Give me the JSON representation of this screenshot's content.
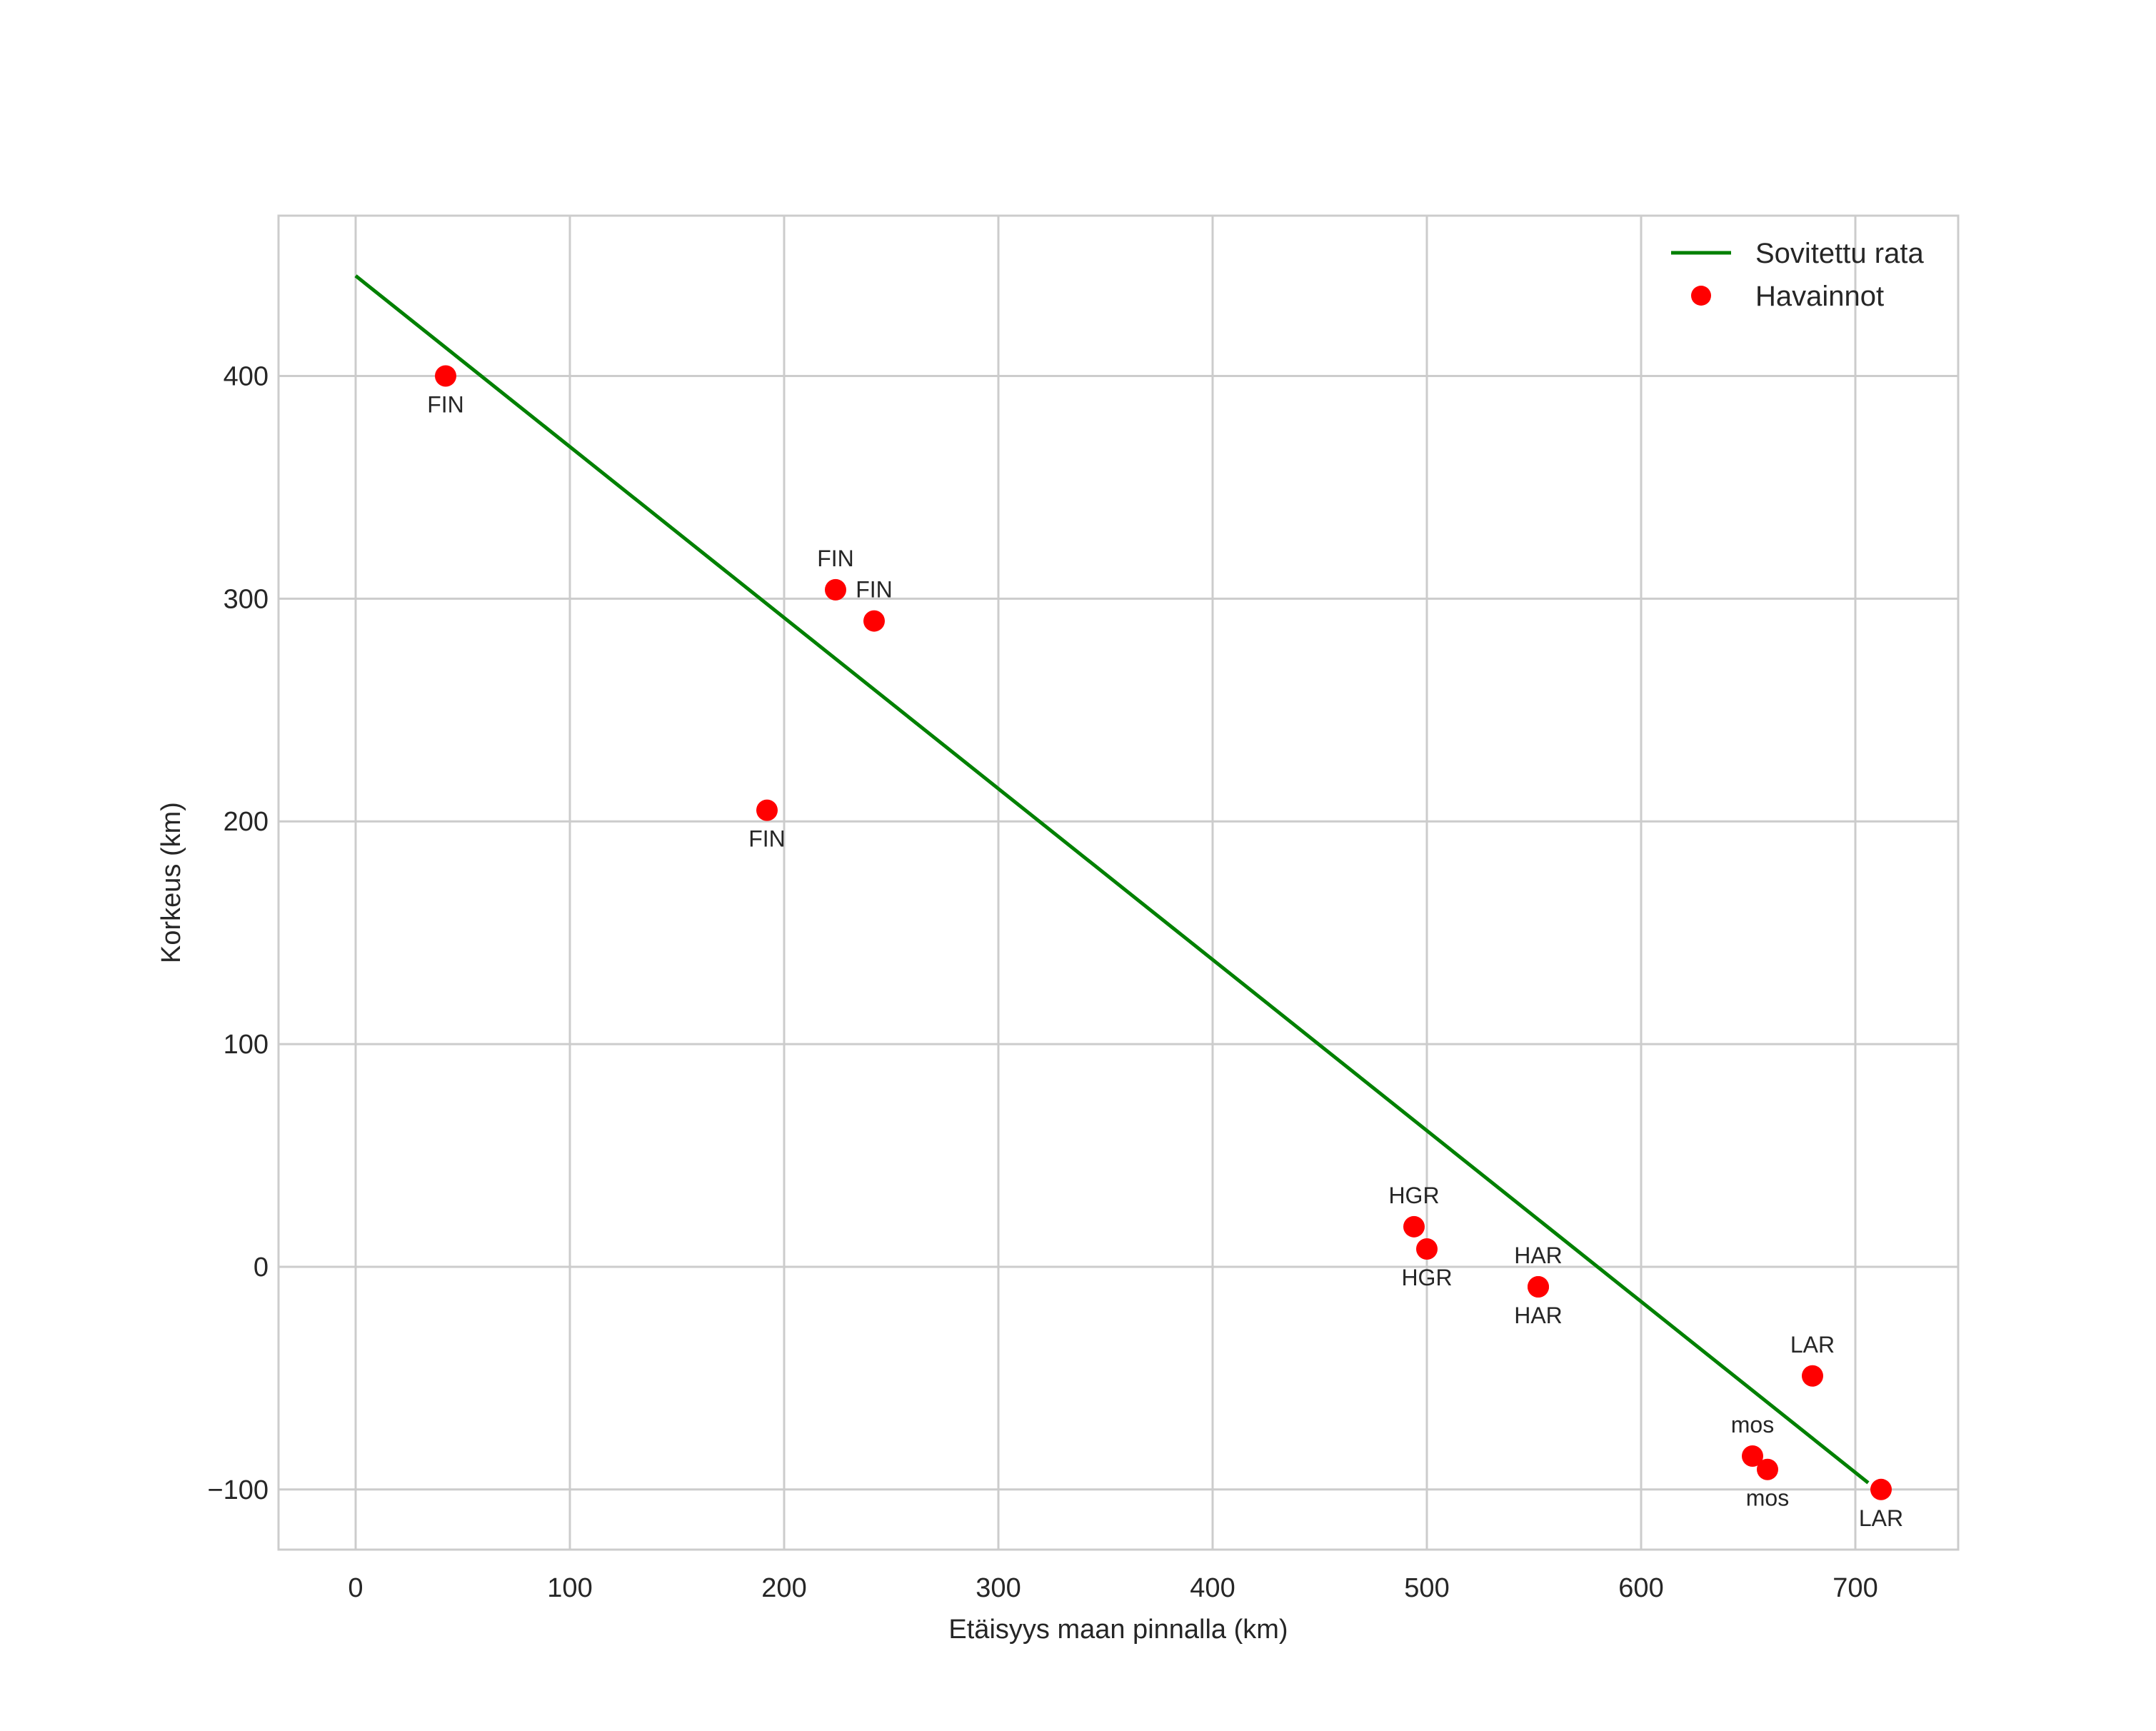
{
  "chart_data": {
    "type": "scatter",
    "title": "",
    "xlabel": "Etäisyys maan pinnalla (km)",
    "ylabel": "Korkeus (km)",
    "xlim": [
      -36,
      748
    ],
    "ylim": [
      -127,
      472
    ],
    "grid": true,
    "x_ticks": [
      0,
      100,
      200,
      300,
      400,
      500,
      600,
      700
    ],
    "x_tick_labels": [
      "0",
      "100",
      "200",
      "300",
      "400",
      "500",
      "600",
      "700"
    ],
    "y_ticks": [
      -100,
      0,
      100,
      200,
      300,
      400
    ],
    "y_tick_labels": [
      "−100",
      "0",
      "100",
      "200",
      "300",
      "400"
    ],
    "legend_position": "top-right",
    "legend": [
      {
        "label": "Sovitettu rata",
        "kind": "line",
        "color": "#008000"
      },
      {
        "label": "Havainnot",
        "kind": "marker",
        "color": "#ff0000"
      }
    ],
    "series": [
      {
        "name": "Sovitettu rata",
        "kind": "line",
        "color": "#008000",
        "x": [
          0,
          706
        ],
        "y": [
          445,
          -97
        ]
      },
      {
        "name": "Havainnot",
        "kind": "scatter",
        "color": "#ff0000",
        "points": [
          {
            "x": 42,
            "y": 400,
            "label": "FIN",
            "label_pos": "below"
          },
          {
            "x": 224,
            "y": 304,
            "label": "FIN",
            "label_pos": "above"
          },
          {
            "x": 242,
            "y": 290,
            "label": "FIN",
            "label_pos": "above"
          },
          {
            "x": 192,
            "y": 205,
            "label": "FIN",
            "label_pos": "below"
          },
          {
            "x": 494,
            "y": 18,
            "label": "HGR",
            "label_pos": "above"
          },
          {
            "x": 500,
            "y": 8,
            "label": "HGR",
            "label_pos": "below"
          },
          {
            "x": 552,
            "y": -9,
            "label": "HAR",
            "label_pos": "above"
          },
          {
            "x": 552,
            "y": -9,
            "label": "HAR",
            "label_pos": "below"
          },
          {
            "x": 680,
            "y": -49,
            "label": "LAR",
            "label_pos": "above"
          },
          {
            "x": 652,
            "y": -85,
            "label": "mos",
            "label_pos": "above"
          },
          {
            "x": 659,
            "y": -91,
            "label": "mos",
            "label_pos": "below"
          },
          {
            "x": 712,
            "y": -100,
            "label": "LAR",
            "label_pos": "below"
          }
        ]
      }
    ]
  }
}
